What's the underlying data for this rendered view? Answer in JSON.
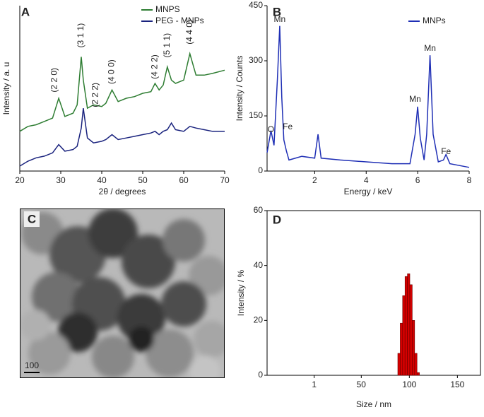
{
  "chart_data": [
    {
      "type": "line",
      "label": "A",
      "ylabel": "Intensity / a. u",
      "xlabel": "2θ / degrees",
      "xlim": [
        20,
        70
      ],
      "xticks": [
        20,
        30,
        40,
        50,
        60,
        70
      ],
      "ylim": [
        0,
        100
      ],
      "x": [
        20,
        22,
        24,
        26,
        28,
        29.5,
        31,
        33,
        34,
        35,
        35.5,
        36.5,
        38,
        40,
        41,
        42.5,
        44,
        46,
        48,
        50,
        52,
        53,
        54,
        55,
        56,
        57,
        58,
        60,
        61.5,
        63,
        65,
        67,
        70
      ],
      "series": [
        {
          "name": "MNPS",
          "color": "#2e7d32",
          "values": [
            24,
            27,
            28,
            30,
            32,
            44,
            33,
            35,
            40,
            69,
            55,
            38,
            40,
            39,
            41,
            49,
            42,
            44,
            45,
            47,
            48,
            53,
            49,
            52,
            63,
            55,
            53,
            55,
            71,
            58,
            58,
            59,
            61
          ]
        },
        {
          "name": "PEG - MNPs",
          "color": "#1a237e",
          "values": [
            3,
            6,
            8,
            9,
            11,
            16,
            12,
            13,
            15,
            26,
            38,
            20,
            17,
            18,
            19,
            22,
            19,
            20,
            21,
            22,
            23,
            24,
            22,
            24,
            25,
            29,
            25,
            24,
            27,
            26,
            25,
            24,
            24
          ]
        }
      ],
      "annotations": [
        {
          "text": "(2 2 0)",
          "x": 28.5,
          "y": 55
        },
        {
          "text": "(3 1 1)",
          "x": 35,
          "y": 82
        },
        {
          "text": "(2 2 2)",
          "x": 38.5,
          "y": 46
        },
        {
          "text": "(4 0 0)",
          "x": 42.5,
          "y": 60
        },
        {
          "text": "(4 2 2)",
          "x": 53,
          "y": 63
        },
        {
          "text": "(5 1 1)",
          "x": 56,
          "y": 76
        },
        {
          "text": "(4 4 0)",
          "x": 61.5,
          "y": 84
        }
      ]
    },
    {
      "type": "line",
      "label": "B",
      "ylabel": "Intensity / Counts",
      "xlabel": "Energy / keV",
      "xlim": [
        0.15,
        8
      ],
      "xticks": [
        2,
        4,
        6,
        8
      ],
      "ylim": [
        0,
        450
      ],
      "yticks": [
        0,
        150,
        300,
        450
      ],
      "x": [
        0.15,
        0.3,
        0.42,
        0.55,
        0.64,
        0.72,
        0.8,
        0.9,
        1.0,
        1.5,
        2.0,
        2.13,
        2.25,
        3,
        4,
        5,
        5.7,
        5.9,
        6.0,
        6.1,
        6.25,
        6.35,
        6.48,
        6.6,
        6.8,
        7.0,
        7.1,
        7.25,
        8
      ],
      "series": [
        {
          "name": "MNPs",
          "color": "#1f2fb5",
          "values": [
            50,
            110,
            70,
            250,
            395,
            200,
            85,
            55,
            30,
            40,
            35,
            100,
            35,
            30,
            25,
            20,
            20,
            100,
            175,
            90,
            30,
            100,
            315,
            100,
            25,
            30,
            45,
            20,
            10
          ]
        }
      ],
      "annotations": [
        {
          "text": "Mn",
          "x": 0.64,
          "y": 412
        },
        {
          "text": "O",
          "x": 0.3,
          "y": 112
        },
        {
          "text": "Fe",
          "x": 0.95,
          "y": 120
        },
        {
          "text": "Mn",
          "x": 5.9,
          "y": 195
        },
        {
          "text": "Mn",
          "x": 6.48,
          "y": 333
        },
        {
          "text": "Fe",
          "x": 7.1,
          "y": 52
        }
      ]
    },
    {
      "type": "image",
      "label": "C",
      "scale_label": "100"
    },
    {
      "type": "histogram",
      "label": "D",
      "ylabel": "Intensity / %",
      "xlabel": "Size / nm",
      "color": "#d40000",
      "xlim": [
        -48,
        174
      ],
      "xticks": [
        1,
        50,
        100,
        150
      ],
      "ylim": [
        0,
        60
      ],
      "yticks": [
        0,
        20,
        40,
        60
      ],
      "bins": [
        88,
        90.5,
        93,
        95.5,
        98,
        100.5,
        103,
        105.5,
        108,
        110.5
      ],
      "values": [
        8,
        19,
        29,
        36,
        37,
        33,
        20,
        8,
        1
      ]
    }
  ]
}
